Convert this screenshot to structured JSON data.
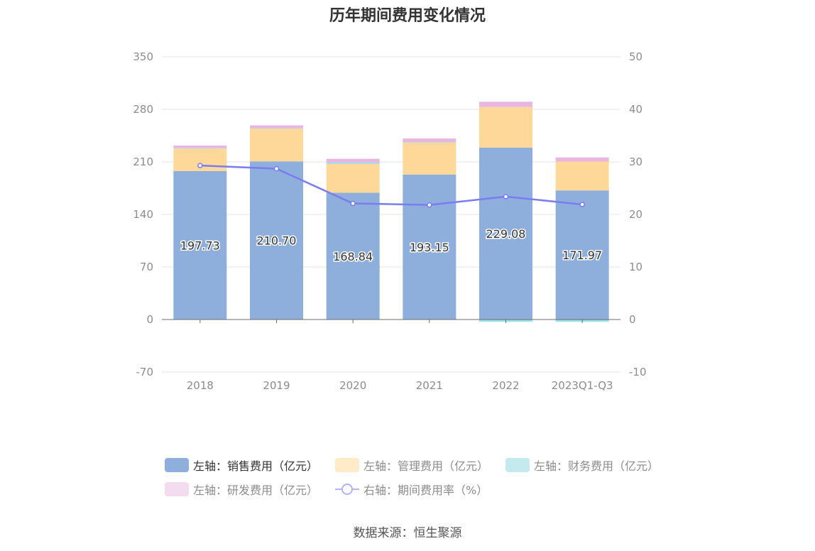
{
  "chart_data": {
    "type": "bar",
    "title": "历年期间费用变化情况",
    "categories": [
      "2018",
      "2019",
      "2020",
      "2021",
      "2022",
      "2023Q1-Q3"
    ],
    "y_left": {
      "ticks": [
        350,
        280,
        210,
        140,
        70,
        0,
        -70
      ],
      "ylim": [
        -70,
        350
      ]
    },
    "y_right": {
      "ticks": [
        50,
        40,
        30,
        20,
        10,
        0,
        -10
      ],
      "ylim": [
        -10,
        50
      ]
    },
    "series": [
      {
        "name": "左轴：销售费用（亿元）",
        "type": "bar",
        "axis": "left",
        "color": "#8eaedb",
        "values": [
          197.73,
          210.7,
          168.84,
          193.15,
          229.08,
          171.97
        ],
        "labels": [
          "197.73",
          "210.70",
          "168.84",
          "193.15",
          "229.08",
          "171.97"
        ]
      },
      {
        "name": "左轴：管理费用（亿元）",
        "type": "bar",
        "axis": "left",
        "color": "#fed899",
        "values": [
          30.0,
          43.5,
          38.5,
          42.5,
          54.0,
          38.5
        ]
      },
      {
        "name": "左轴：财务费用（亿元）",
        "type": "bar",
        "axis": "left",
        "color": "#98e0e4",
        "values": [
          0.5,
          0.5,
          1.8,
          0.5,
          -3.0,
          -3.0
        ]
      },
      {
        "name": "左轴：研发费用（亿元）",
        "type": "bar",
        "axis": "left",
        "color": "#e8b6e0",
        "values": [
          3.5,
          4.0,
          5.0,
          5.0,
          7.0,
          5.5
        ]
      },
      {
        "name": "右轴：期间费用率（%）",
        "type": "line",
        "axis": "right",
        "color": "#7b7cf3",
        "values": [
          29.3,
          28.7,
          22.1,
          21.8,
          23.4,
          21.9
        ]
      }
    ],
    "grid": true,
    "legend_position": "bottom"
  },
  "legend": {
    "items": [
      {
        "label": "左轴：销售费用（亿元）",
        "color": "#8eaedb",
        "active": true
      },
      {
        "label": "左轴：管理费用（亿元）",
        "color": "#ffebc8"
      },
      {
        "label": "左轴：财务费用（亿元）",
        "color": "#c4eaee"
      },
      {
        "label": "左轴：研发费用（亿元）",
        "color": "#f3dcef"
      },
      {
        "label": "右轴：期间费用率（%）",
        "color": "#b0b4f6"
      }
    ]
  },
  "source": "数据来源：恒生聚源"
}
